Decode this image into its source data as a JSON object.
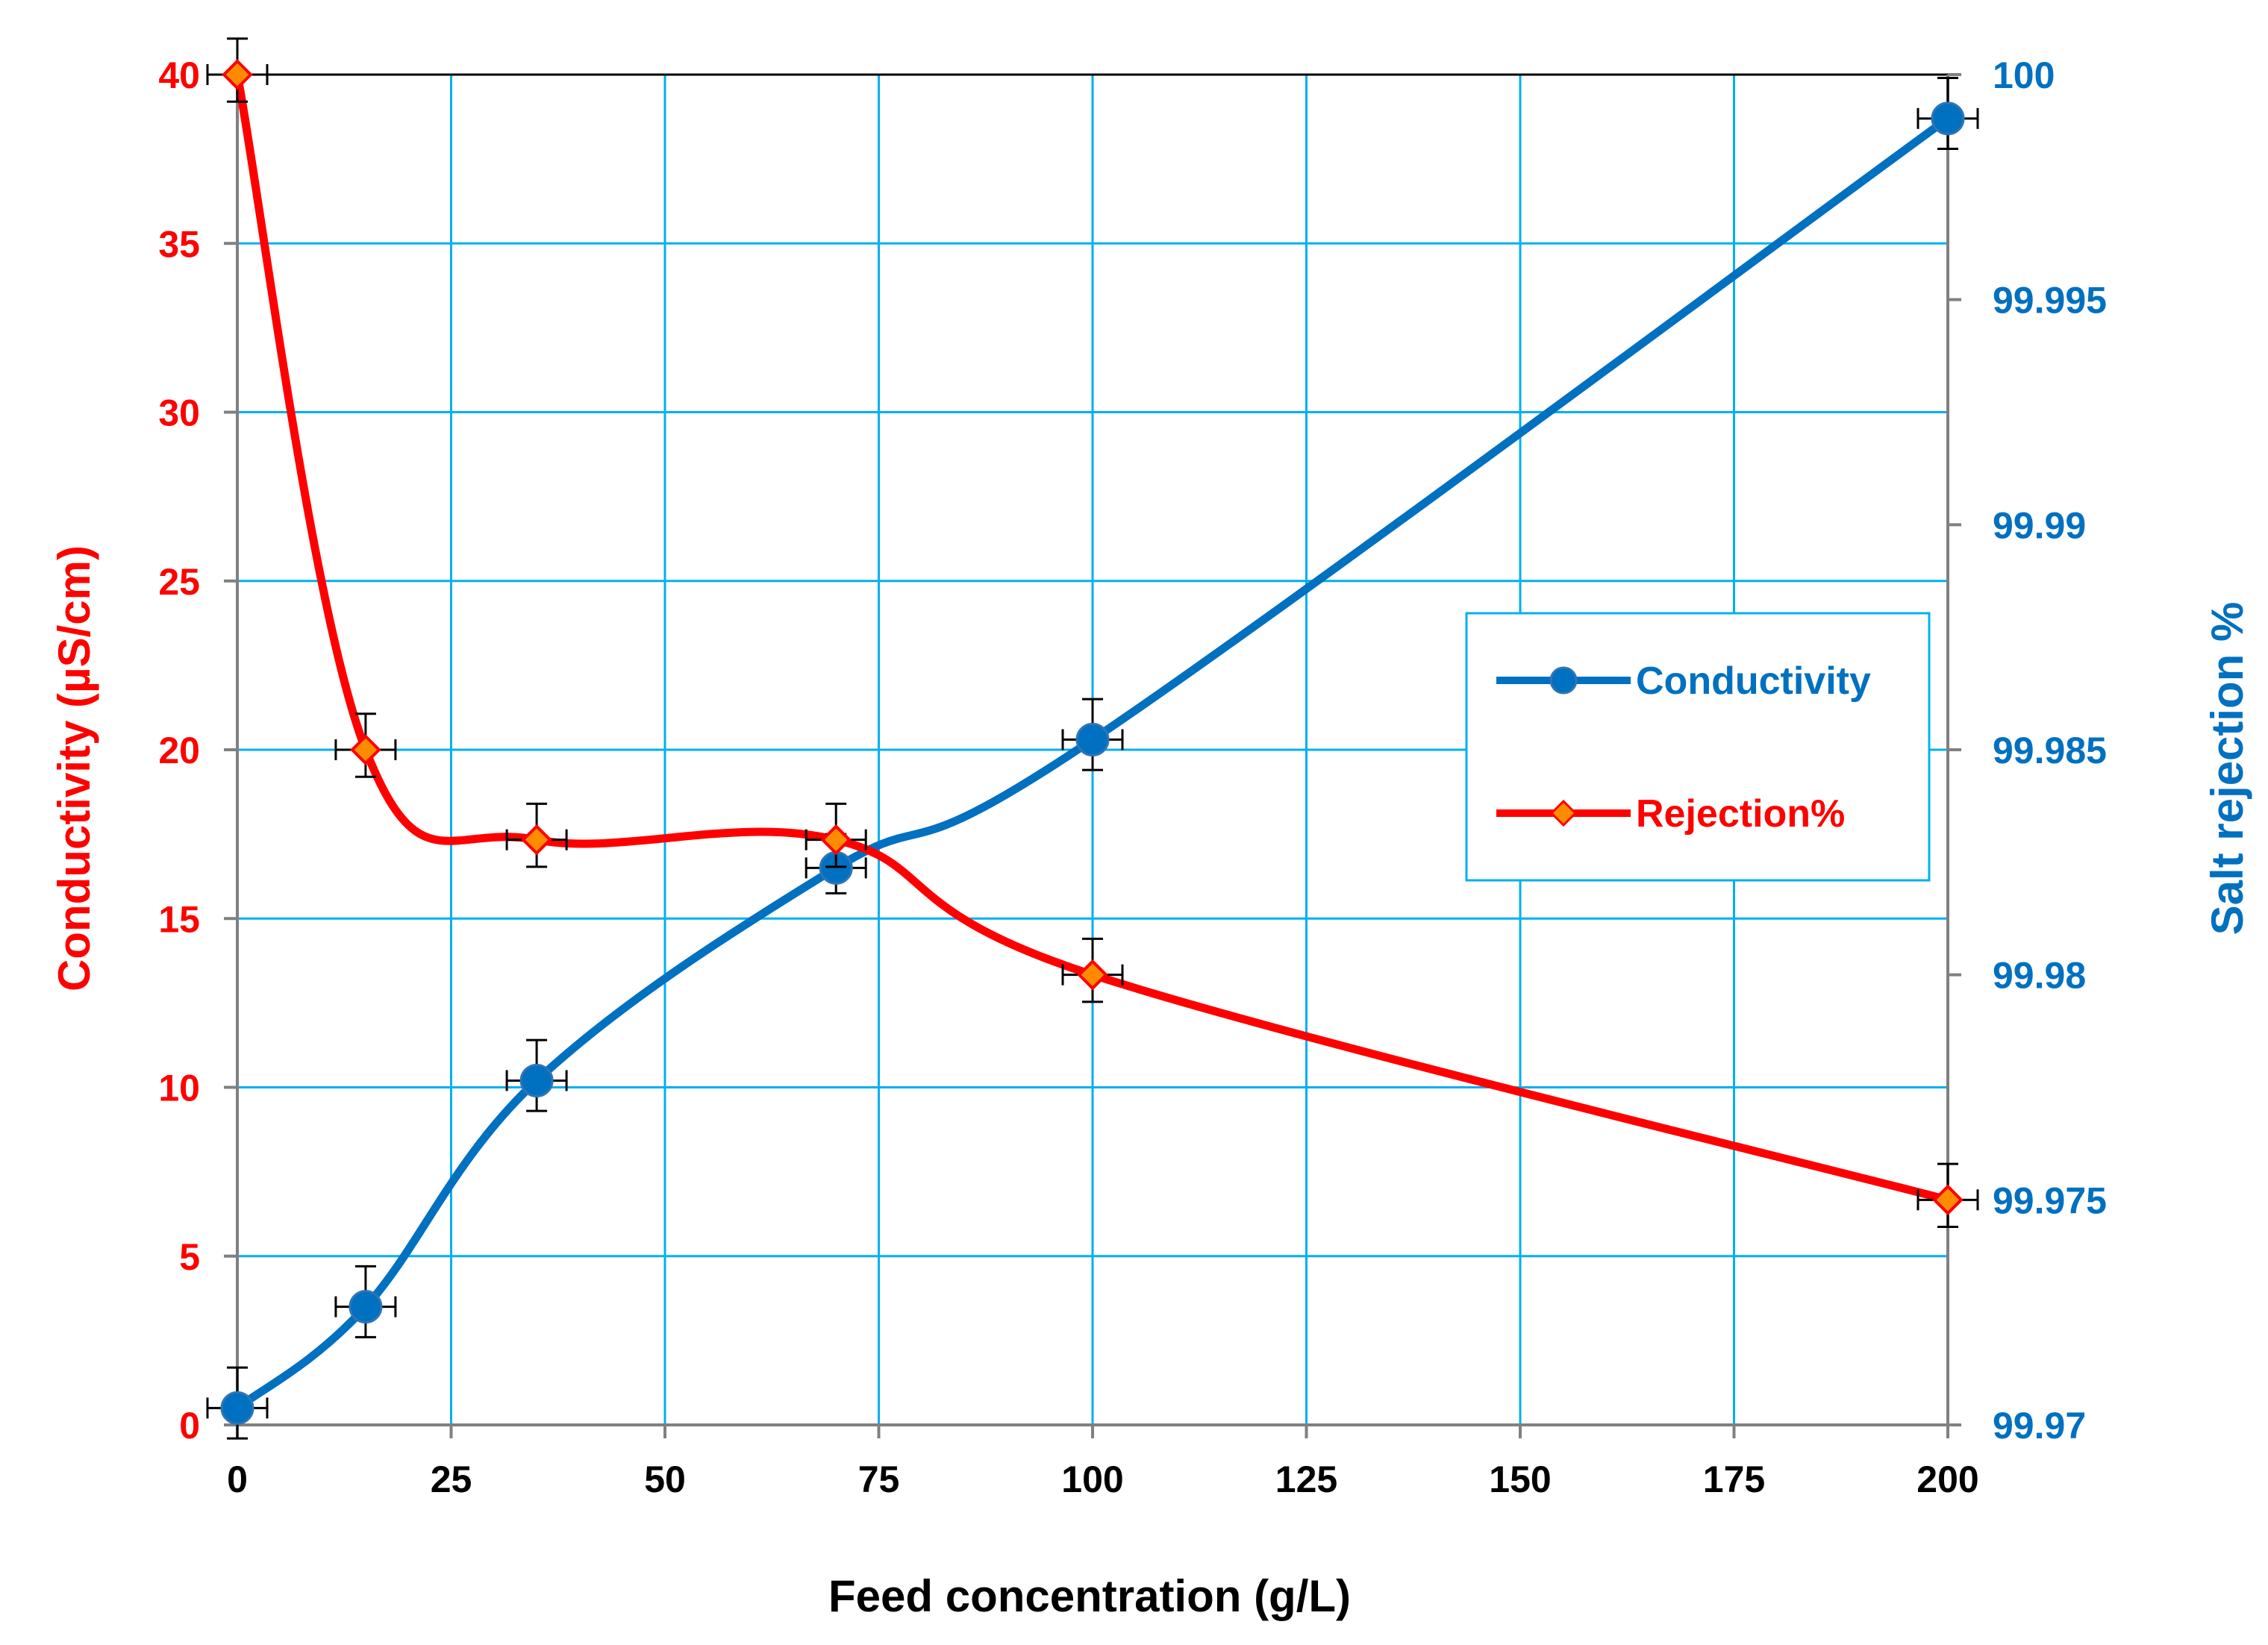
{
  "colors": {
    "red_series": "#ff0000",
    "blue_series": "#0070c0",
    "gridline": "#00b0f0",
    "axis_line": "#808080",
    "marker_red_fill": "#ff8c00"
  },
  "chart_data": {
    "type": "line",
    "categories": [
      "0",
      "15",
      "35",
      "70",
      "100",
      "200"
    ],
    "x_tick_labels": [
      "0",
      "25",
      "50",
      "75",
      "100",
      "125",
      "150",
      "175",
      "200"
    ],
    "xlabel": "Feed concentration (g/L)",
    "ylabel_left": "Conductivity (µS/cm)",
    "ylabel_right": "Salt rejection %",
    "ylim_left": [
      0,
      40
    ],
    "ylim_right": [
      99.97,
      100
    ],
    "y_left_ticks": [
      "0",
      "5",
      "10",
      "15",
      "20",
      "25",
      "30",
      "35",
      "40"
    ],
    "y_right_ticks": [
      "99.97",
      "99.975",
      "99.98",
      "99.985",
      "99.99",
      "99.995",
      "100"
    ],
    "grid": true,
    "legend_position": "right",
    "series": [
      {
        "name": "Conductivity",
        "axis": "left",
        "color": "#0070c0",
        "marker": "circle",
        "values": [
          0.5,
          3.5,
          10.2,
          16.5,
          20.3,
          38.7
        ],
        "error": [
          1.2,
          1.2,
          1.2,
          1.0,
          1.2,
          1.2
        ]
      },
      {
        "name": "Rejection%",
        "axis": "right",
        "color": "#ff0000",
        "marker": "diamond",
        "values": [
          100,
          99.985,
          99.983,
          99.983,
          99.98,
          99.975
        ],
        "error": [
          0.0008,
          0.0008,
          0.0008,
          0.0008,
          0.0008,
          0.0008
        ]
      }
    ]
  }
}
